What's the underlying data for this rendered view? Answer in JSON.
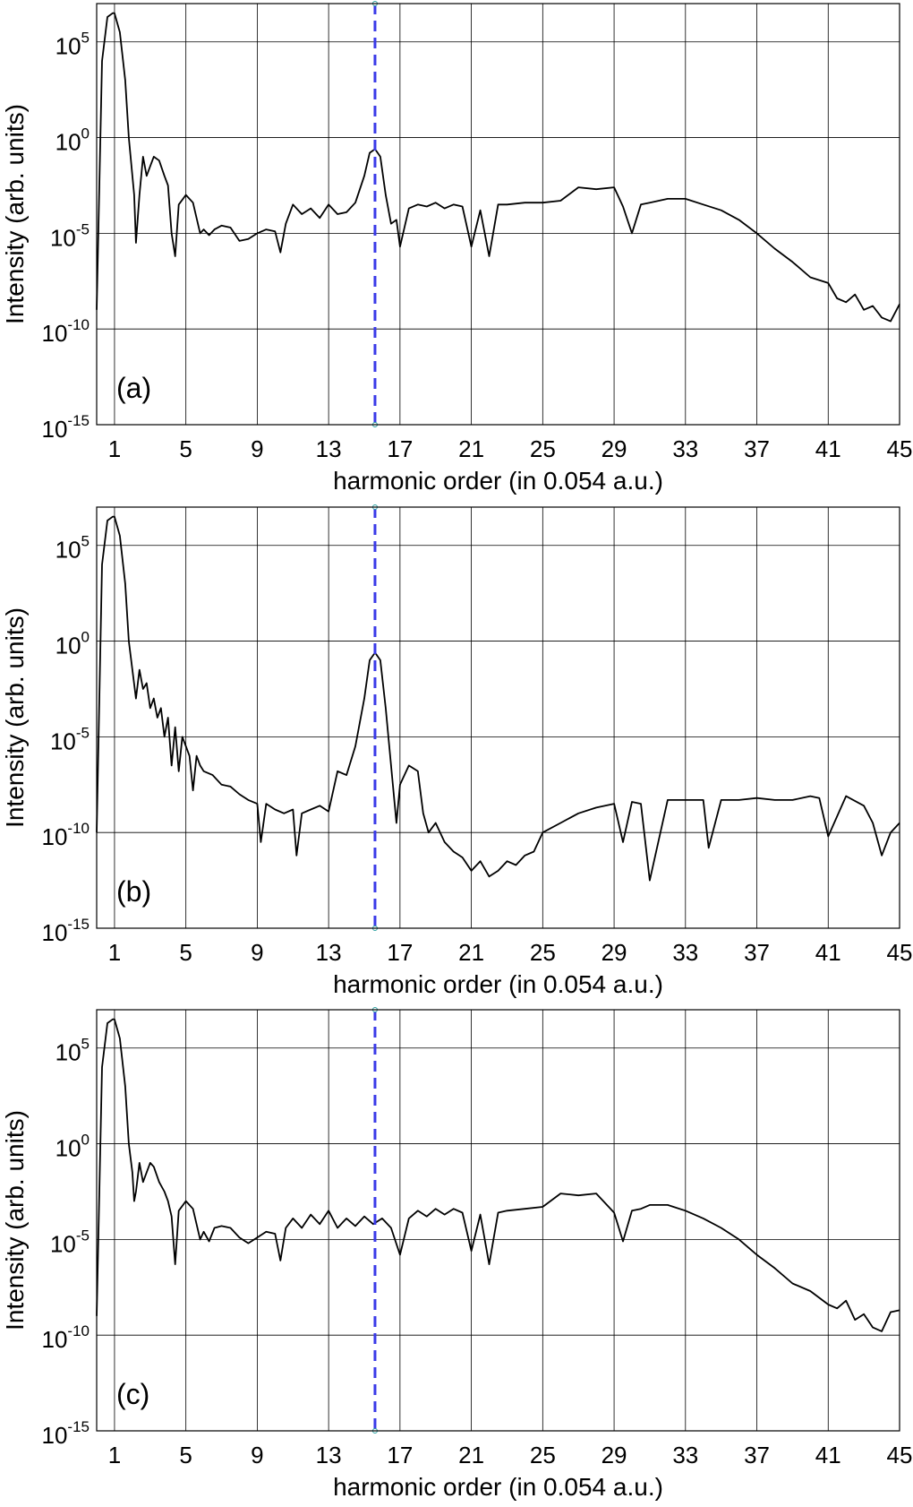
{
  "figure": {
    "xlabel": "harmonic order (in 0.054 a.u.)",
    "ylabel": "Intensity (arb. units)",
    "colors": {
      "spectrum": "#000000",
      "marker": "#3a3ae8",
      "grid": "#000000"
    }
  },
  "chart_data": [
    {
      "type": "line",
      "panel_label": "(a)",
      "xlabel": "harmonic order (in 0.054 a.u.)",
      "ylabel": "Intensity (arb. units)",
      "xlim": [
        0.0,
        45.0
      ],
      "ylim_log10": [
        -15,
        7
      ],
      "yscale": "log",
      "grid": true,
      "x_ticks": [
        1,
        5,
        9,
        13,
        17,
        21,
        25,
        29,
        33,
        37,
        41,
        45
      ],
      "y_ticks": [
        {
          "base": "10",
          "exp": "5",
          "value": 5
        },
        {
          "base": "10",
          "exp": "0",
          "value": 0
        },
        {
          "base": "10",
          "exp": "-5",
          "value": -5
        },
        {
          "base": "10",
          "exp": "-10",
          "value": -10
        },
        {
          "base": "10",
          "exp": "-15",
          "value": -15
        }
      ],
      "marker_line_x": 15.6,
      "series": [
        {
          "x": [
            0,
            0.3,
            0.6,
            0.9,
            1.0,
            1.3,
            1.6,
            1.8,
            2.0,
            2.1,
            2.2,
            2.4,
            2.6,
            2.8,
            3.0,
            3.2,
            3.5,
            3.8,
            4.0,
            4.2,
            4.4,
            4.6,
            5.0,
            5.4,
            5.8,
            6.0,
            6.3,
            6.6,
            7.0,
            7.5,
            8.0,
            8.5,
            9.0,
            9.5,
            10.0,
            10.3,
            10.6,
            11.0,
            11.5,
            12.0,
            12.5,
            13.0,
            13.5,
            14.0,
            14.5,
            15.0,
            15.3,
            15.6,
            15.9,
            16.2,
            16.5,
            16.8,
            17.0,
            17.5,
            18.0,
            18.5,
            19.0,
            19.5,
            20.0,
            20.5,
            21.0,
            21.5,
            22.0,
            22.5,
            23.0,
            24.0,
            25.0,
            26.0,
            27.0,
            28.0,
            29.0,
            29.5,
            30.0,
            30.5,
            31.0,
            32.0,
            33.0,
            34.0,
            35.0,
            36.0,
            37.0,
            38.0,
            39.0,
            40.0,
            41.0,
            41.5,
            42.0,
            42.5,
            43.0,
            43.5,
            44.0,
            44.5,
            45.0
          ],
          "y_log10": [
            -9,
            4,
            6.3,
            6.5,
            6.5,
            5.5,
            3,
            0,
            -2,
            -3,
            -5.5,
            -3,
            -1,
            -2,
            -1.5,
            -1,
            -1.2,
            -2,
            -2.5,
            -5,
            -6.2,
            -3.5,
            -3,
            -3.4,
            -5,
            -4.8,
            -5.1,
            -4.8,
            -4.6,
            -4.7,
            -5.4,
            -5.3,
            -5,
            -4.8,
            -4.9,
            -6,
            -4.5,
            -3.5,
            -4,
            -3.7,
            -4.2,
            -3.5,
            -4,
            -3.9,
            -3.4,
            -2,
            -0.8,
            -0.6,
            -1,
            -3,
            -4.5,
            -4.3,
            -5.7,
            -3.7,
            -3.5,
            -3.6,
            -3.4,
            -3.7,
            -3.5,
            -3.6,
            -5.7,
            -3.8,
            -6.2,
            -3.5,
            -3.5,
            -3.4,
            -3.4,
            -3.3,
            -2.6,
            -2.7,
            -2.6,
            -3.6,
            -5,
            -3.5,
            -3.4,
            -3.2,
            -3.2,
            -3.5,
            -3.8,
            -4.3,
            -5,
            -5.8,
            -6.5,
            -7.3,
            -7.6,
            -8.4,
            -8.6,
            -8.2,
            -9,
            -8.8,
            -9.4,
            -9.6,
            -8.7
          ]
        }
      ]
    },
    {
      "type": "line",
      "panel_label": "(b)",
      "xlabel": "harmonic order (in 0.054 a.u.)",
      "ylabel": "Intensity (arb. units)",
      "xlim": [
        0.0,
        45.0
      ],
      "ylim_log10": [
        -15,
        7
      ],
      "yscale": "log",
      "grid": true,
      "x_ticks": [
        1,
        5,
        9,
        13,
        17,
        21,
        25,
        29,
        33,
        37,
        41,
        45
      ],
      "y_ticks": [
        {
          "base": "10",
          "exp": "5",
          "value": 5
        },
        {
          "base": "10",
          "exp": "0",
          "value": 0
        },
        {
          "base": "10",
          "exp": "-5",
          "value": -5
        },
        {
          "base": "10",
          "exp": "-10",
          "value": -10
        },
        {
          "base": "10",
          "exp": "-15",
          "value": -15
        }
      ],
      "marker_line_x": 15.6,
      "series": [
        {
          "x": [
            0,
            0.3,
            0.6,
            0.9,
            1.0,
            1.3,
            1.6,
            1.8,
            2.0,
            2.2,
            2.4,
            2.6,
            2.8,
            3.0,
            3.2,
            3.4,
            3.6,
            3.8,
            4.0,
            4.2,
            4.4,
            4.6,
            4.8,
            5.0,
            5.2,
            5.4,
            5.6,
            5.8,
            6.0,
            6.5,
            7.0,
            7.5,
            8.0,
            8.5,
            9.0,
            9.2,
            9.5,
            10.0,
            10.5,
            11.0,
            11.2,
            11.5,
            12.0,
            12.5,
            13.0,
            13.5,
            14.0,
            14.5,
            15.0,
            15.3,
            15.6,
            15.9,
            16.2,
            16.5,
            16.8,
            17.0,
            17.5,
            18.0,
            18.3,
            18.6,
            19.0,
            19.5,
            20.0,
            20.5,
            21.0,
            21.5,
            22.0,
            22.5,
            23.0,
            23.5,
            24.0,
            24.5,
            25.0,
            26.0,
            27.0,
            28.0,
            29.0,
            29.5,
            30.0,
            30.5,
            31.0,
            32.0,
            33.0,
            34.0,
            34.3,
            35.0,
            36.0,
            37.0,
            38.0,
            39.0,
            40.0,
            40.5,
            41.0,
            42.0,
            43.0,
            43.5,
            44.0,
            44.5,
            45.0
          ],
          "y_log10": [
            -10,
            4,
            6.3,
            6.5,
            6.5,
            5.5,
            3,
            0,
            -1.5,
            -3,
            -1.5,
            -2.5,
            -2.2,
            -3.5,
            -3,
            -4,
            -3.5,
            -5,
            -4,
            -6.5,
            -4.5,
            -6.8,
            -5,
            -5.5,
            -6,
            -7.8,
            -6,
            -6.5,
            -6.8,
            -7,
            -7.5,
            -7.6,
            -8,
            -8.3,
            -8.5,
            -10.5,
            -8.5,
            -8.8,
            -9,
            -8.8,
            -11.2,
            -9,
            -8.8,
            -8.6,
            -8.9,
            -6.8,
            -7,
            -5.5,
            -3,
            -1,
            -0.6,
            -1,
            -3.5,
            -6.5,
            -9.5,
            -7.5,
            -6.5,
            -6.8,
            -9,
            -10,
            -9.5,
            -10.5,
            -11,
            -11.3,
            -12,
            -11.5,
            -12.3,
            -12,
            -11.5,
            -11.7,
            -11.2,
            -11,
            -10,
            -9.5,
            -9,
            -8.7,
            -8.5,
            -10.5,
            -8.4,
            -8.5,
            -12.5,
            -8.3,
            -8.3,
            -8.3,
            -10.8,
            -8.3,
            -8.3,
            -8.2,
            -8.3,
            -8.3,
            -8.1,
            -8.2,
            -10.2,
            -8.1,
            -8.6,
            -9.5,
            -11.2,
            -10,
            -9.5
          ]
        }
      ]
    },
    {
      "type": "line",
      "panel_label": "(c)",
      "xlabel": "harmonic order (in 0.054 a.u.)",
      "ylabel": "Intensity (arb. units)",
      "xlim": [
        0.0,
        45.0
      ],
      "ylim_log10": [
        -15,
        7
      ],
      "yscale": "log",
      "grid": true,
      "x_ticks": [
        1,
        5,
        9,
        13,
        17,
        21,
        25,
        29,
        33,
        37,
        41,
        45
      ],
      "y_ticks": [
        {
          "base": "10",
          "exp": "5",
          "value": 5
        },
        {
          "base": "10",
          "exp": "0",
          "value": 0
        },
        {
          "base": "10",
          "exp": "-5",
          "value": -5
        },
        {
          "base": "10",
          "exp": "-10",
          "value": -10
        },
        {
          "base": "10",
          "exp": "-15",
          "value": -15
        }
      ],
      "marker_line_x": 15.6,
      "series": [
        {
          "x": [
            0,
            0.3,
            0.6,
            0.9,
            1.0,
            1.3,
            1.6,
            1.8,
            2.0,
            2.1,
            2.2,
            2.4,
            2.6,
            2.8,
            3.0,
            3.2,
            3.5,
            3.8,
            4.0,
            4.2,
            4.4,
            4.6,
            5.0,
            5.4,
            5.8,
            6.0,
            6.3,
            6.6,
            7.0,
            7.5,
            8.0,
            8.5,
            9.0,
            9.5,
            10.0,
            10.3,
            10.6,
            11.0,
            11.5,
            12.0,
            12.5,
            13.0,
            13.5,
            14.0,
            14.5,
            15.0,
            15.5,
            16.0,
            16.5,
            17.0,
            17.5,
            18.0,
            18.5,
            19.0,
            19.5,
            20.0,
            20.5,
            21.0,
            21.5,
            22.0,
            22.5,
            23.0,
            24.0,
            25.0,
            26.0,
            27.0,
            28.0,
            29.0,
            29.5,
            30.0,
            30.5,
            31.0,
            32.0,
            33.0,
            34.0,
            35.0,
            36.0,
            37.0,
            38.0,
            39.0,
            40.0,
            41.0,
            41.5,
            42.0,
            42.5,
            43.0,
            43.5,
            44.0,
            44.5,
            45.0
          ],
          "y_log10": [
            -9,
            4,
            6.3,
            6.5,
            6.5,
            5.5,
            3,
            0,
            -1.5,
            -3,
            -2.5,
            -1,
            -2,
            -1.5,
            -1,
            -1.2,
            -2,
            -2.5,
            -3,
            -3.8,
            -6.3,
            -3.5,
            -3,
            -3.4,
            -5,
            -4.6,
            -5.1,
            -4.4,
            -4.3,
            -4.4,
            -4.9,
            -5.2,
            -4.9,
            -4.6,
            -4.7,
            -6.1,
            -4.4,
            -3.9,
            -4.4,
            -3.7,
            -4.2,
            -3.5,
            -4.4,
            -3.9,
            -4.3,
            -3.8,
            -4.2,
            -3.9,
            -4.4,
            -5.8,
            -3.9,
            -3.5,
            -3.8,
            -3.4,
            -3.7,
            -3.4,
            -3.6,
            -5.6,
            -3.7,
            -6.3,
            -3.6,
            -3.5,
            -3.4,
            -3.3,
            -2.6,
            -2.7,
            -2.6,
            -3.6,
            -5.1,
            -3.5,
            -3.4,
            -3.2,
            -3.2,
            -3.5,
            -3.9,
            -4.4,
            -5.0,
            -5.8,
            -6.5,
            -7.3,
            -7.7,
            -8.4,
            -8.6,
            -8.2,
            -9.2,
            -8.9,
            -9.6,
            -9.8,
            -8.8,
            -8.7
          ]
        }
      ]
    }
  ]
}
